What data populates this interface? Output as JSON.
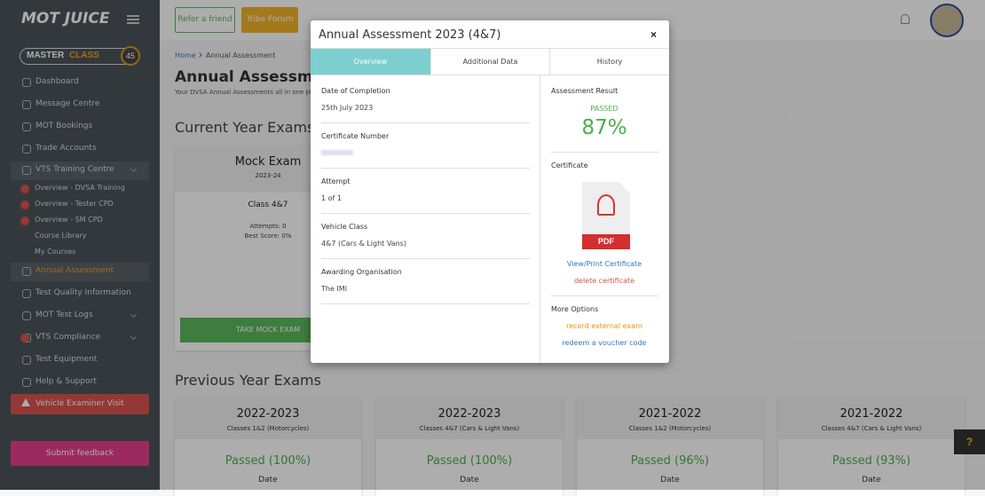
{
  "sidebar": {
    "logo": "MOT JUICE",
    "badge": {
      "part1": "MASTER",
      "part2": "CLASS",
      "count": "45"
    },
    "menu": [
      "Dashboard",
      "Message Centre",
      "MOT Bookings",
      "Trade Accounts",
      "VTS Training Centre",
      "Overview - DVSA Training",
      "Overview - Tester CPD",
      "Overview - SM CPD",
      "Course Library",
      "My Courses",
      "Annual Assessment",
      "Test Quality Information",
      "MOT Test Logs",
      "VTS Compliance",
      "Test Equipment",
      "Help & Support"
    ],
    "alert_button": "Vehicle Examiner Visit",
    "feedback_button": "Submit feedback"
  },
  "topbar": {
    "buttons": [
      "Refer a friend",
      "Tribe Forum"
    ]
  },
  "breadcrumb": [
    "Home",
    "Annual Assessment"
  ],
  "page": {
    "title": "Annual Assessment",
    "subtitle": "Your DVSA Annual Assessments all in one place"
  },
  "current": {
    "heading": "Current Year Exams",
    "card": {
      "title": "Mock Exam",
      "year": "2023-24",
      "class": "Class 4&7",
      "attempts": "Attempts: 0",
      "best": "Best Score: 0%",
      "button": "TAKE MOCK EXAM"
    }
  },
  "previous": {
    "heading": "Previous Year Exams",
    "cards": [
      {
        "year": "2022-2023",
        "classes": "Classes 1&2 (Motorcycles)",
        "result": "Passed (100%)",
        "date_label": "Date"
      },
      {
        "year": "2022-2023",
        "classes": "Classes 4&7 (Cars & Light Vans)",
        "result": "Passed (100%)",
        "date_label": "Date"
      },
      {
        "year": "2021-2022",
        "classes": "Classes 1&2 (Motorcycles)",
        "result": "Passed (96%)",
        "date_label": "Date"
      },
      {
        "year": "2021-2022",
        "classes": "Classes 4&7 (Cars & Light Vans)",
        "result": "Passed (93%)",
        "date_label": "Date"
      }
    ]
  },
  "help": "?",
  "modal": {
    "title": "Annual Assessment 2023 (4&7)",
    "close": "×",
    "tabs": [
      "Overview",
      "Additional Data",
      "History"
    ],
    "fields": [
      {
        "label": "Date of Completion",
        "value": "25th July 2023"
      },
      {
        "label": "Certificate Number"
      },
      {
        "label": "Attempt",
        "value": "1 of 1"
      },
      {
        "label": "Vehicle Class",
        "value": "4&7 (Cars & Light Vans)"
      },
      {
        "label": "Awarding Organisation",
        "value": "The IMI"
      }
    ],
    "result_label": "Assessment Result",
    "result_status": "PASSED",
    "result_score": "87%",
    "certificate_label": "Certificate",
    "pdf_label": "PDF",
    "view_link": "View/Print Certificate",
    "delete_link": "delete certificate",
    "options_label": "More Options",
    "record_link": "record external exam",
    "redeem_link": "redeem a voucher code"
  }
}
